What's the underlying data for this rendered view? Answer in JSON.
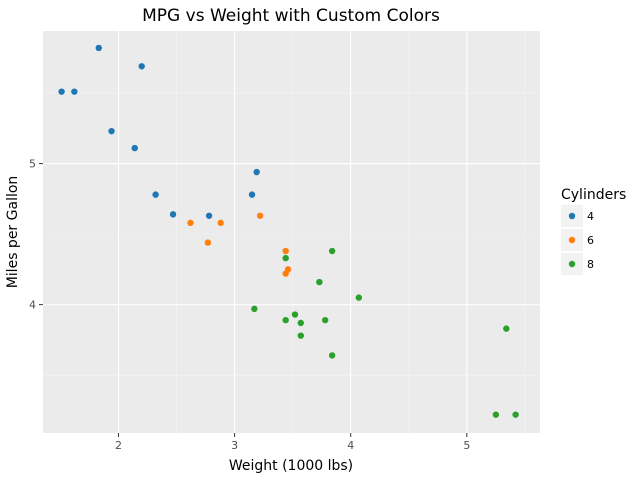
{
  "chart_data": {
    "type": "scatter",
    "title": "MPG vs Weight with Custom Colors",
    "xlabel": "Weight (1000 lbs)",
    "ylabel": "Miles per Gallon",
    "xlim": [
      1.35,
      5.63
    ],
    "ylim": [
      3.09,
      5.94
    ],
    "xticks": [
      2,
      3,
      4,
      5
    ],
    "yticks": [
      4,
      5
    ],
    "xminor": [
      2.5,
      3.5,
      4.5,
      5.5
    ],
    "yminor": [
      3.5,
      4.5,
      5.5
    ],
    "grid": true,
    "legend": {
      "title": "Cylinders",
      "position": "right"
    },
    "series": [
      {
        "name": "4",
        "color": "#1f77b4",
        "points": [
          [
            1.83,
            5.82
          ],
          [
            2.2,
            5.69
          ],
          [
            1.51,
            5.51
          ],
          [
            1.62,
            5.51
          ],
          [
            1.94,
            5.23
          ],
          [
            2.14,
            5.11
          ],
          [
            3.19,
            4.94
          ],
          [
            2.32,
            4.78
          ],
          [
            3.15,
            4.78
          ],
          [
            2.47,
            4.64
          ],
          [
            2.78,
            4.63
          ]
        ]
      },
      {
        "name": "6",
        "color": "#ff7f0e",
        "points": [
          [
            2.62,
            4.58
          ],
          [
            2.88,
            4.58
          ],
          [
            3.22,
            4.63
          ],
          [
            2.77,
            4.44
          ],
          [
            3.44,
            4.38
          ],
          [
            3.46,
            4.25
          ],
          [
            3.44,
            4.22
          ]
        ]
      },
      {
        "name": "8",
        "color": "#2ca02c",
        "points": [
          [
            3.44,
            4.33
          ],
          [
            3.84,
            4.38
          ],
          [
            3.73,
            4.16
          ],
          [
            4.07,
            4.05
          ],
          [
            3.17,
            3.97
          ],
          [
            3.52,
            3.93
          ],
          [
            3.44,
            3.89
          ],
          [
            3.78,
            3.89
          ],
          [
            3.57,
            3.87
          ],
          [
            3.57,
            3.78
          ],
          [
            5.34,
            3.83
          ],
          [
            3.84,
            3.64
          ],
          [
            5.25,
            3.22
          ],
          [
            5.42,
            3.22
          ]
        ]
      }
    ]
  }
}
